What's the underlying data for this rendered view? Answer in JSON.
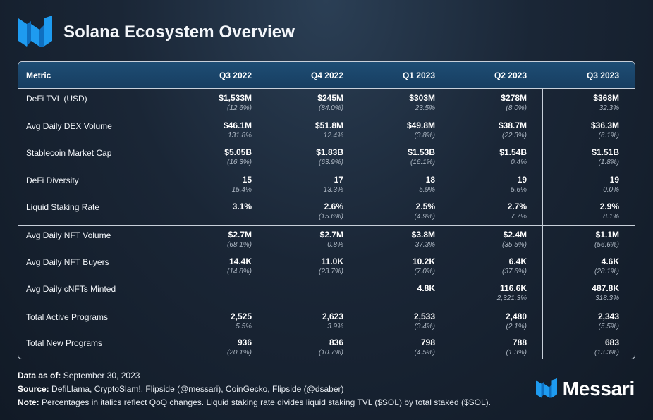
{
  "header": {
    "title": "Solana Ecosystem Overview",
    "logo_icon": "messari-m-logo"
  },
  "table": {
    "columns": [
      "Metric",
      "Q3 2022",
      "Q4 2022",
      "Q1 2023",
      "Q2 2023",
      "Q3 2023"
    ],
    "rows": [
      {
        "metric": "DeFi TVL (USD)",
        "cells": [
          {
            "value": "$1,533M",
            "change": "(12.6%)"
          },
          {
            "value": "$245M",
            "change": "(84.0%)"
          },
          {
            "value": "$303M",
            "change": "23.5%"
          },
          {
            "value": "$278M",
            "change": "(8.0%)"
          },
          {
            "value": "$368M",
            "change": "32.3%"
          }
        ]
      },
      {
        "metric": "Avg Daily DEX Volume",
        "cells": [
          {
            "value": "$46.1M",
            "change": "131.8%"
          },
          {
            "value": "$51.8M",
            "change": "12.4%"
          },
          {
            "value": "$49.8M",
            "change": "(3.8%)"
          },
          {
            "value": "$38.7M",
            "change": "(22.3%)"
          },
          {
            "value": "$36.3M",
            "change": "(6.1%)"
          }
        ]
      },
      {
        "metric": "Stablecoin Market Cap",
        "cells": [
          {
            "value": "$5.05B",
            "change": "(16.3%)"
          },
          {
            "value": "$1.83B",
            "change": "(63.9%)"
          },
          {
            "value": "$1.53B",
            "change": "(16.1%)"
          },
          {
            "value": "$1.54B",
            "change": "0.4%"
          },
          {
            "value": "$1.51B",
            "change": "(1.8%)"
          }
        ]
      },
      {
        "metric": "DeFi Diversity",
        "cells": [
          {
            "value": "15",
            "change": "15.4%"
          },
          {
            "value": "17",
            "change": "13.3%"
          },
          {
            "value": "18",
            "change": "5.9%"
          },
          {
            "value": "19",
            "change": "5.6%"
          },
          {
            "value": "19",
            "change": "0.0%"
          }
        ]
      },
      {
        "metric": "Liquid Staking Rate",
        "cells": [
          {
            "value": "3.1%",
            "change": ""
          },
          {
            "value": "2.6%",
            "change": "(15.6%)"
          },
          {
            "value": "2.5%",
            "change": "(4.9%)"
          },
          {
            "value": "2.7%",
            "change": "7.7%"
          },
          {
            "value": "2.9%",
            "change": "8.1%"
          }
        ]
      },
      {
        "metric": "Avg Daily NFT Volume",
        "group_start": true,
        "cells": [
          {
            "value": "$2.7M",
            "change": "(68.1%)"
          },
          {
            "value": "$2.7M",
            "change": "0.8%"
          },
          {
            "value": "$3.8M",
            "change": "37.3%"
          },
          {
            "value": "$2.4M",
            "change": "(35.5%)"
          },
          {
            "value": "$1.1M",
            "change": "(56.6%)"
          }
        ]
      },
      {
        "metric": "Avg Daily NFT Buyers",
        "cells": [
          {
            "value": "14.4K",
            "change": "(14.8%)"
          },
          {
            "value": "11.0K",
            "change": "(23.7%)"
          },
          {
            "value": "10.2K",
            "change": "(7.0%)"
          },
          {
            "value": "6.4K",
            "change": "(37.6%)"
          },
          {
            "value": "4.6K",
            "change": "(28.1%)"
          }
        ]
      },
      {
        "metric": "Avg Daily cNFTs Minted",
        "cells": [
          {
            "value": "",
            "change": ""
          },
          {
            "value": "",
            "change": ""
          },
          {
            "value": "4.8K",
            "change": ""
          },
          {
            "value": "116.6K",
            "change": "2,321.3%"
          },
          {
            "value": "487.8K",
            "change": "318.3%"
          }
        ]
      },
      {
        "metric": "Total Active Programs",
        "group_start": true,
        "cells": [
          {
            "value": "2,525",
            "change": "5.5%"
          },
          {
            "value": "2,623",
            "change": "3.9%"
          },
          {
            "value": "2,533",
            "change": "(3.4%)"
          },
          {
            "value": "2,480",
            "change": "(2.1%)"
          },
          {
            "value": "2,343",
            "change": "(5.5%)"
          }
        ]
      },
      {
        "metric": "Total New Programs",
        "cells": [
          {
            "value": "936",
            "change": "(20.1%)"
          },
          {
            "value": "836",
            "change": "(10.7%)"
          },
          {
            "value": "798",
            "change": "(4.5%)"
          },
          {
            "value": "788",
            "change": "(1.3%)"
          },
          {
            "value": "683",
            "change": "(13.3%)"
          }
        ]
      }
    ]
  },
  "footnotes": {
    "data_as_of_label": "Data as of:",
    "data_as_of_value": " September 30, 2023",
    "source_label": "Source:",
    "source_value": " DefiLlama, CryptoSlam!, Flipside (@messari), CoinGecko, Flipside (@dsaber)",
    "note_label": "Note:",
    "note_value": " Percentages in italics reflect QoQ changes. Liquid staking rate divides liquid staking TVL ($SOL) by total staked ($SOL)."
  },
  "brand": {
    "name": "Messari",
    "logo_icon": "messari-m-logo"
  },
  "colors": {
    "accent_blue": "#1e9bf0",
    "header_bg": "#1e4d74",
    "border": "#c8d0da"
  }
}
